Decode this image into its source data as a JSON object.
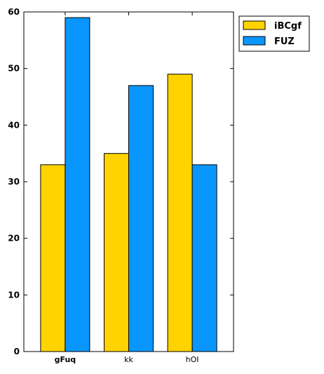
{
  "chart_data": {
    "type": "bar",
    "categories": [
      "gFuq",
      "kk",
      "hOI"
    ],
    "series": [
      {
        "name": "iBCgf",
        "values": [
          33,
          35,
          49
        ],
        "color": "#ffd300"
      },
      {
        "name": "FUZ",
        "values": [
          59,
          47,
          33
        ],
        "color": "#0a96ff"
      }
    ],
    "ylim": [
      0,
      60
    ],
    "yticks": [
      0,
      10,
      20,
      30,
      40,
      50,
      60
    ],
    "grid": false,
    "legend": "outside-top-right",
    "bold_categories": [
      "gFuq"
    ]
  }
}
